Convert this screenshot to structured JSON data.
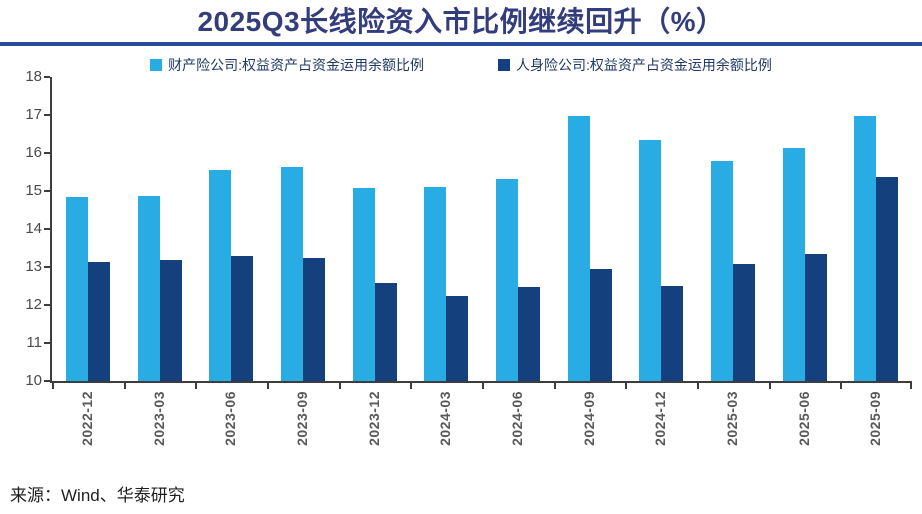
{
  "source_note": "来源：Wind、华泰研究",
  "colors": {
    "title_text": "#333d7c",
    "title_rule": "#2c4a9c",
    "axis": "#3d3d3d",
    "axis_labels": "#595959",
    "series_property": "#29abe3",
    "series_life": "#14407e"
  },
  "chart_data": {
    "type": "bar",
    "title": "2025Q3长线险资入市比例继续回升（%）",
    "categories": [
      "2022-12",
      "2023-03",
      "2023-06",
      "2023-09",
      "2023-12",
      "2024-03",
      "2024-06",
      "2024-09",
      "2024-12",
      "2025-03",
      "2025-06",
      "2025-09"
    ],
    "series": [
      {
        "name": "财产险公司:权益资产占资金运用余额比例",
        "color": "#29abe3",
        "values": [
          14.85,
          14.88,
          15.55,
          15.63,
          15.08,
          15.11,
          15.32,
          16.97,
          16.34,
          15.8,
          16.14,
          16.97
        ]
      },
      {
        "name": "人身险公司:权益资产占资金运用余额比例",
        "color": "#14407e",
        "values": [
          13.12,
          13.18,
          13.29,
          13.24,
          12.58,
          12.24,
          12.47,
          12.95,
          12.49,
          13.07,
          13.33,
          15.36
        ]
      }
    ],
    "xlabel": "",
    "ylabel": "",
    "ylim": [
      10,
      18
    ],
    "ytick_step": 1,
    "grid": false,
    "legend_position": "top"
  }
}
